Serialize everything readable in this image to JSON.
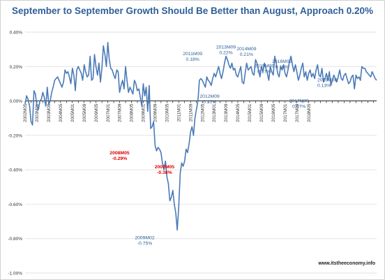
{
  "title": "September to September Growth Should Be Better than August, Approach 0.20%",
  "source": "www.itstheeconomy.info",
  "colors": {
    "line": "#4a7ab8",
    "title": "#2e5f98",
    "highlight": "#e00000",
    "annotation": "#2e5f98",
    "axis": "#000000",
    "grid": "#d9d9d9"
  },
  "chart_data": {
    "type": "line",
    "title": "September to September Growth Should Be Better than August, Approach 0.20%",
    "xlabel": "",
    "ylabel": "",
    "ylim": [
      -1.0,
      0.4
    ],
    "y_ticks": [
      "0.40%",
      "0.20%",
      "0.00%",
      "-0.20%",
      "-0.40%",
      "-0.60%",
      "-0.80%",
      "-1.00%"
    ],
    "x_ticks": [
      "2002M05",
      "2003M01",
      "2003M09",
      "2004M05",
      "2005M01",
      "2005M09",
      "2006M05",
      "2007M01",
      "2007M09",
      "2008M05",
      "2009M01",
      "2009M09",
      "2010M05",
      "2011M01",
      "2011M09",
      "2012M05",
      "2013M01",
      "2013M09",
      "2014M05",
      "2015M01",
      "2015M09",
      "2016M05",
      "2017M01",
      "2017M09",
      "2018M05"
    ],
    "x_tick_labels": [
      "2002M05",
      "2003M01",
      "2003M09",
      "2004M05",
      "2005M01",
      "2005M09",
      "2006M05",
      "2007M01",
      "2007M09",
      "2008M05",
      "2009M01",
      "2009M09",
      "2010M05",
      "2011M01",
      "2011M09",
      "2012M05",
      "2013M01",
      "2013M09",
      "2014M05",
      "2015M01",
      "2015M09",
      "2016M05",
      "2017M01",
      "2017M09",
      "2018M05"
    ],
    "grid": "horizontal",
    "series": [
      {
        "values": [
          -0.02,
          0.03,
          0.01,
          -0.03,
          -0.12,
          -0.14,
          0.06,
          0.04,
          -0.03,
          -0.05,
          0.0,
          0.01,
          0.05,
          0.02,
          -0.03,
          0.08,
          -0.02,
          0.0,
          0.05,
          0.08,
          0.12,
          0.13,
          0.14,
          0.12,
          0.1,
          0.08,
          0.11,
          0.18,
          0.16,
          0.17,
          0.14,
          0.1,
          0.19,
          0.15,
          0.06,
          0.18,
          0.2,
          0.18,
          0.16,
          0.12,
          0.21,
          0.17,
          0.14,
          0.15,
          0.26,
          0.12,
          0.13,
          0.27,
          0.2,
          0.15,
          0.22,
          0.11,
          0.19,
          0.32,
          0.27,
          0.2,
          0.34,
          0.24,
          0.19,
          0.18,
          0.15,
          0.13,
          0.18,
          0.17,
          0.05,
          0.09,
          0.12,
          0.07,
          0.2,
          0.12,
          0.05,
          0.08,
          0.06,
          0.04,
          0.12,
          0.1,
          0.06,
          0.07,
          0.02,
          -0.03,
          0.1,
          0.03,
          0.08,
          -0.06,
          0.09,
          -0.16,
          -0.15,
          -0.12,
          -0.26,
          -0.29,
          -0.27,
          -0.28,
          -0.3,
          -0.36,
          -0.4,
          -0.35,
          -0.44,
          -0.48,
          -0.58,
          -0.56,
          -0.52,
          -0.6,
          -0.65,
          -0.75,
          -0.62,
          -0.42,
          -0.36,
          -0.38,
          -0.35,
          -0.28,
          -0.3,
          -0.25,
          -0.18,
          -0.15,
          -0.2,
          -0.1,
          -0.05,
          0.0,
          0.12,
          0.13,
          0.12,
          0.1,
          0.08,
          0.14,
          0.12,
          0.11,
          0.09,
          0.13,
          0.16,
          0.14,
          0.17,
          0.2,
          0.16,
          0.13,
          0.17,
          0.22,
          0.26,
          0.24,
          0.21,
          0.19,
          0.22,
          0.18,
          0.19,
          0.15,
          0.14,
          0.17,
          0.2,
          0.11,
          0.1,
          0.16,
          0.22,
          0.18,
          0.19,
          0.2,
          0.16,
          0.15,
          0.24,
          0.22,
          0.18,
          0.14,
          0.2,
          0.17,
          0.22,
          0.19,
          0.16,
          0.12,
          0.2,
          0.17,
          0.15,
          0.26,
          0.22,
          0.16,
          0.14,
          0.2,
          0.18,
          0.21,
          0.16,
          0.14,
          0.18,
          0.23,
          0.26,
          0.21,
          0.17,
          0.21,
          0.17,
          0.12,
          0.15,
          0.19,
          0.22,
          0.14,
          0.17,
          0.12,
          0.16,
          0.18,
          0.14,
          0.16,
          0.13,
          0.18,
          0.21,
          0.15,
          0.14,
          0.19,
          0.11,
          0.13,
          0.16,
          0.12,
          0.17,
          0.09,
          0.12,
          0.15,
          0.13,
          0.11,
          0.14,
          0.18,
          0.13,
          0.12,
          0.15,
          0.16,
          0.13,
          0.1,
          0.11,
          0.14,
          0.15,
          0.07,
          0.15,
          0.13,
          0.14,
          0.12,
          0.2,
          0.19,
          0.19,
          0.17,
          0.16,
          0.15,
          0.14,
          0.17,
          0.15,
          0.13,
          0.12
        ]
      }
    ],
    "annotations": [
      {
        "label": "2008M05",
        "value_label": "-0.29%",
        "x": "2008M05",
        "y": -0.29,
        "color": "red"
      },
      {
        "label": "2009M05",
        "value_label": "-0.38%",
        "x": "2009M05",
        "y": -0.38,
        "color": "red"
      },
      {
        "label": "2009M02",
        "value_label": "-0.75%",
        "x": "2009M02",
        "y": -0.75,
        "color": "blue"
      },
      {
        "label": "2011M09",
        "value_label": "0.18%",
        "x": "2011M09",
        "y": 0.18,
        "color": "blue"
      },
      {
        "label": "2012M09",
        "value_label": "0.10%",
        "x": "2012M09",
        "y": 0.1,
        "color": "blue"
      },
      {
        "label": "2013M09",
        "value_label": "0.22%",
        "x": "2013M09",
        "y": 0.22,
        "color": "blue"
      },
      {
        "label": "2014M09",
        "value_label": "0.21%",
        "x": "2014M09",
        "y": 0.21,
        "color": "blue"
      },
      {
        "label": "2015M09",
        "value_label": "0.17%",
        "x": "2015M09",
        "y": 0.17,
        "color": "blue"
      },
      {
        "label": "2016M09",
        "value_label": "0.18%",
        "x": "2016M09",
        "y": 0.18,
        "color": "blue"
      },
      {
        "label": "2017M09",
        "value_label": "0.07%",
        "x": "2017M09",
        "y": 0.07,
        "color": "blue"
      },
      {
        "label": "2018M08",
        "value_label": "0.13%",
        "x": "2018M08",
        "y": 0.13,
        "color": "blue"
      }
    ]
  }
}
